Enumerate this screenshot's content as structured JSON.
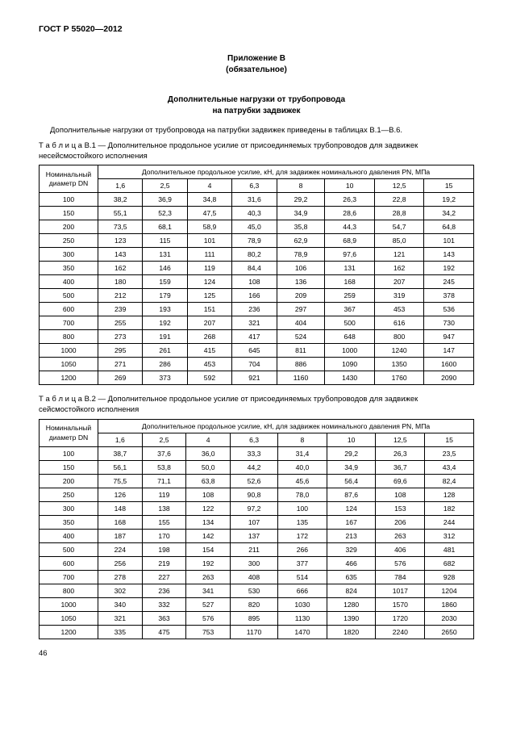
{
  "doc_id": "ГОСТ Р 55020—2012",
  "appendix_label": "Приложение B",
  "appendix_type": "(обязательное)",
  "section_title_1": "Дополнительные нагрузки от трубопровода",
  "section_title_2": "на патрубки задвижек",
  "intro_text": "Дополнительные нагрузки от трубопровода на патрубки задвижек приведены в таблицах B.1—B.6.",
  "table1": {
    "caption_prefix": "Т а б л и ц а",
    "caption": "  B.1 — Дополнительное продольное усилие от присоединяемых трубопроводов для задвижек несейсмостойкого исполнения",
    "dn_head_1": "Номинальный",
    "dn_head_2": "диаметр DN",
    "pn_head": "Дополнительное продольное усилие, кН, для задвижек номинального давления PN, МПа",
    "pn_cols": [
      "1,6",
      "2,5",
      "4",
      "6,3",
      "8",
      "10",
      "12,5",
      "15"
    ],
    "rows": [
      [
        "100",
        "38,2",
        "36,9",
        "34,8",
        "31,6",
        "29,2",
        "26,3",
        "22,8",
        "19,2"
      ],
      [
        "150",
        "55,1",
        "52,3",
        "47,5",
        "40,3",
        "34,9",
        "28,6",
        "28,8",
        "34,2"
      ],
      [
        "200",
        "73,5",
        "68,1",
        "58,9",
        "45,0",
        "35,8",
        "44,3",
        "54,7",
        "64,8"
      ],
      [
        "250",
        "123",
        "115",
        "101",
        "78,9",
        "62,9",
        "68,9",
        "85,0",
        "101"
      ],
      [
        "300",
        "143",
        "131",
        "111",
        "80,2",
        "78,9",
        "97,6",
        "121",
        "143"
      ],
      [
        "350",
        "162",
        "146",
        "119",
        "84,4",
        "106",
        "131",
        "162",
        "192"
      ],
      [
        "400",
        "180",
        "159",
        "124",
        "108",
        "136",
        "168",
        "207",
        "245"
      ],
      [
        "500",
        "212",
        "179",
        "125",
        "166",
        "209",
        "259",
        "319",
        "378"
      ],
      [
        "600",
        "239",
        "193",
        "151",
        "236",
        "297",
        "367",
        "453",
        "536"
      ],
      [
        "700",
        "255",
        "192",
        "207",
        "321",
        "404",
        "500",
        "616",
        "730"
      ],
      [
        "800",
        "273",
        "191",
        "268",
        "417",
        "524",
        "648",
        "800",
        "947"
      ],
      [
        "1000",
        "295",
        "261",
        "415",
        "645",
        "811",
        "1000",
        "1240",
        "147"
      ],
      [
        "1050",
        "271",
        "286",
        "453",
        "704",
        "886",
        "1090",
        "1350",
        "1600"
      ],
      [
        "1200",
        "269",
        "373",
        "592",
        "921",
        "1160",
        "1430",
        "1760",
        "2090"
      ]
    ]
  },
  "table2": {
    "caption_prefix": "Т а б л и ц а",
    "caption": "  B.2 — Дополнительное продольное усилие от присоединяемых трубопроводов для задвижек сейсмостойкого исполнения",
    "dn_head_1": "Номинальный",
    "dn_head_2": "диаметр DN",
    "pn_head": "Дополнительное продольное усилие, кН, для задвижек номинального давления PN, МПа",
    "pn_cols": [
      "1,6",
      "2,5",
      "4",
      "6,3",
      "8",
      "10",
      "12,5",
      "15"
    ],
    "rows": [
      [
        "100",
        "38,7",
        "37,6",
        "36,0",
        "33,3",
        "31,4",
        "29,2",
        "26,3",
        "23,5"
      ],
      [
        "150",
        "56,1",
        "53,8",
        "50,0",
        "44,2",
        "40,0",
        "34,9",
        "36,7",
        "43,4"
      ],
      [
        "200",
        "75,5",
        "71,1",
        "63,8",
        "52,6",
        "45,6",
        "56,4",
        "69,6",
        "82,4"
      ],
      [
        "250",
        "126",
        "119",
        "108",
        "90,8",
        "78,0",
        "87,6",
        "108",
        "128"
      ],
      [
        "300",
        "148",
        "138",
        "122",
        "97,2",
        "100",
        "124",
        "153",
        "182"
      ],
      [
        "350",
        "168",
        "155",
        "134",
        "107",
        "135",
        "167",
        "206",
        "244"
      ],
      [
        "400",
        "187",
        "170",
        "142",
        "137",
        "172",
        "213",
        "263",
        "312"
      ],
      [
        "500",
        "224",
        "198",
        "154",
        "211",
        "266",
        "329",
        "406",
        "481"
      ],
      [
        "600",
        "256",
        "219",
        "192",
        "300",
        "377",
        "466",
        "576",
        "682"
      ],
      [
        "700",
        "278",
        "227",
        "263",
        "408",
        "514",
        "635",
        "784",
        "928"
      ],
      [
        "800",
        "302",
        "236",
        "341",
        "530",
        "666",
        "824",
        "1017",
        "1204"
      ],
      [
        "1000",
        "340",
        "332",
        "527",
        "820",
        "1030",
        "1280",
        "1570",
        "1860"
      ],
      [
        "1050",
        "321",
        "363",
        "576",
        "895",
        "1130",
        "1390",
        "1720",
        "2030"
      ],
      [
        "1200",
        "335",
        "475",
        "753",
        "1170",
        "1470",
        "1820",
        "2240",
        "2650"
      ]
    ]
  },
  "page_number": "46"
}
